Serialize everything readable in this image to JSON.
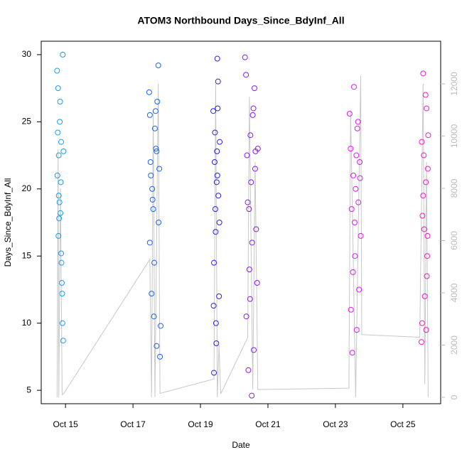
{
  "chart_data": {
    "type": "scatter",
    "title": "ATOM3 Northbound Days_Since_BdyInf_All",
    "x_label": "Date",
    "y_label": "Days_Since_BdyInf_All",
    "xlim": [
      14.28,
      26.12
    ],
    "xticks": [
      {
        "value": 15,
        "label": "Oct 15"
      },
      {
        "value": 17,
        "label": "Oct 17"
      },
      {
        "value": 19,
        "label": "Oct 19"
      },
      {
        "value": 21,
        "label": "Oct 21"
      },
      {
        "value": 23,
        "label": "Oct 23"
      },
      {
        "value": 25,
        "label": "Oct 25"
      }
    ],
    "ylim": [
      4,
      31
    ],
    "yticks": [
      5,
      10,
      15,
      20,
      25,
      30
    ],
    "y2lim": [
      -245,
      13630
    ],
    "y2ticks": [
      0,
      2000,
      4000,
      6000,
      8000,
      10000,
      12000
    ],
    "series": [
      {
        "color": "#1a9ee8",
        "x": [
          14.75,
          14.78,
          14.8,
          14.82,
          14.85,
          14.87,
          14.9,
          14.92,
          14.76,
          14.79,
          14.83,
          14.86,
          14.88,
          14.91,
          14.93,
          14.77,
          14.81,
          14.84,
          14.89,
          14.94,
          14.8,
          14.87
        ],
        "values": [
          28.8,
          27.5,
          22.5,
          19,
          18.2,
          23.5,
          12.2,
          30,
          21,
          16.5,
          25,
          20.5,
          14.5,
          10,
          8.7,
          24.2,
          17.8,
          26.5,
          13,
          22.8,
          19.5,
          15.2
        ]
      },
      {
        "color": "#1a66f0",
        "x": [
          17.48,
          17.5,
          17.52,
          17.55,
          17.57,
          17.6,
          17.62,
          17.65,
          17.68,
          17.7,
          17.72,
          17.75,
          17.78,
          17.8,
          17.82,
          17.5,
          17.58,
          17.63,
          17.7,
          17.76,
          17.53,
          17.67
        ],
        "values": [
          27.2,
          25.5,
          22,
          12.2,
          20,
          18.5,
          10.5,
          24.5,
          23,
          8.3,
          26.5,
          29.2,
          21.5,
          7.5,
          9.8,
          16,
          19.2,
          14.5,
          22.8,
          17.5,
          21,
          25.8
        ]
      },
      {
        "color": "#2a1ef0",
        "x": [
          19.38,
          19.4,
          19.42,
          19.44,
          19.46,
          19.48,
          19.5,
          19.52,
          19.55,
          19.57,
          19.4,
          19.45,
          19.5,
          19.53,
          19.43,
          19.47,
          19.51,
          19.39,
          19.56,
          19.49
        ],
        "values": [
          25.8,
          6.3,
          22,
          18.5,
          10,
          20.5,
          29.7,
          28,
          12,
          23.5,
          14.5,
          16.8,
          21,
          19.5,
          24.2,
          8.5,
          26,
          11.3,
          17.5,
          22.8
        ]
      },
      {
        "color": "#8a1af0",
        "x": [
          20.32,
          20.35,
          20.38,
          20.4,
          20.42,
          20.45,
          20.48,
          20.5,
          20.52,
          20.55,
          20.58,
          20.6,
          20.62,
          20.65,
          20.68,
          20.7,
          20.36,
          20.44,
          20.53,
          20.63,
          20.47,
          20.57
        ],
        "values": [
          29.8,
          28.5,
          22.5,
          19,
          6.5,
          14,
          24,
          20.5,
          4.6,
          25.5,
          8,
          27.5,
          21.5,
          17,
          13,
          23,
          10.5,
          18.5,
          16,
          22.8,
          11.8,
          26
        ]
      },
      {
        "color": "#e01af0",
        "x": [
          23.42,
          23.45,
          23.48,
          23.5,
          23.53,
          23.55,
          23.58,
          23.6,
          23.63,
          23.65,
          23.68,
          23.7,
          23.72,
          23.75,
          23.46,
          23.52,
          23.57,
          23.62,
          23.67,
          23.73
        ],
        "values": [
          25.6,
          23,
          18.5,
          7.8,
          21,
          27.6,
          15,
          20,
          9.5,
          24.5,
          19,
          12.5,
          22,
          16.5,
          11,
          13.8,
          17.5,
          22.5,
          25,
          20.8
        ]
      },
      {
        "color": "#f01ac8",
        "x": [
          25.55,
          25.58,
          25.6,
          25.62,
          25.65,
          25.68,
          25.7,
          25.72,
          25.75,
          25.57,
          25.63,
          25.67,
          25.71,
          25.74,
          25.6,
          25.69,
          25.56,
          25.73
        ],
        "values": [
          8.6,
          18,
          28.6,
          22.5,
          12,
          20.5,
          26,
          15,
          24,
          10,
          17,
          27,
          13.5,
          21.5,
          19.5,
          9.5,
          23.5,
          16.5
        ]
      },
      {
        "type": "line",
        "axis": "y2",
        "color": "#c8c8c8",
        "x": [
          14.75,
          14.78,
          14.8,
          14.85,
          14.9,
          14.95,
          17.5,
          17.55,
          17.6,
          17.65,
          17.75,
          17.8,
          19.4,
          19.45,
          19.5,
          19.55,
          19.6,
          20.4,
          20.45,
          20.55,
          20.62,
          20.7,
          23.4,
          23.45,
          23.6,
          23.75,
          23.78,
          25.5,
          25.6,
          25.65,
          25.7,
          25.75
        ],
        "values": [
          0,
          9500,
          0,
          8000,
          100,
          150,
          5280,
          0,
          11000,
          0,
          12000,
          150,
          700,
          12000,
          0,
          2000,
          130,
          2290,
          11500,
          300,
          9000,
          300,
          350,
          11000,
          0,
          12300,
          2400,
          2300,
          12000,
          500,
          9000,
          0
        ]
      }
    ]
  }
}
